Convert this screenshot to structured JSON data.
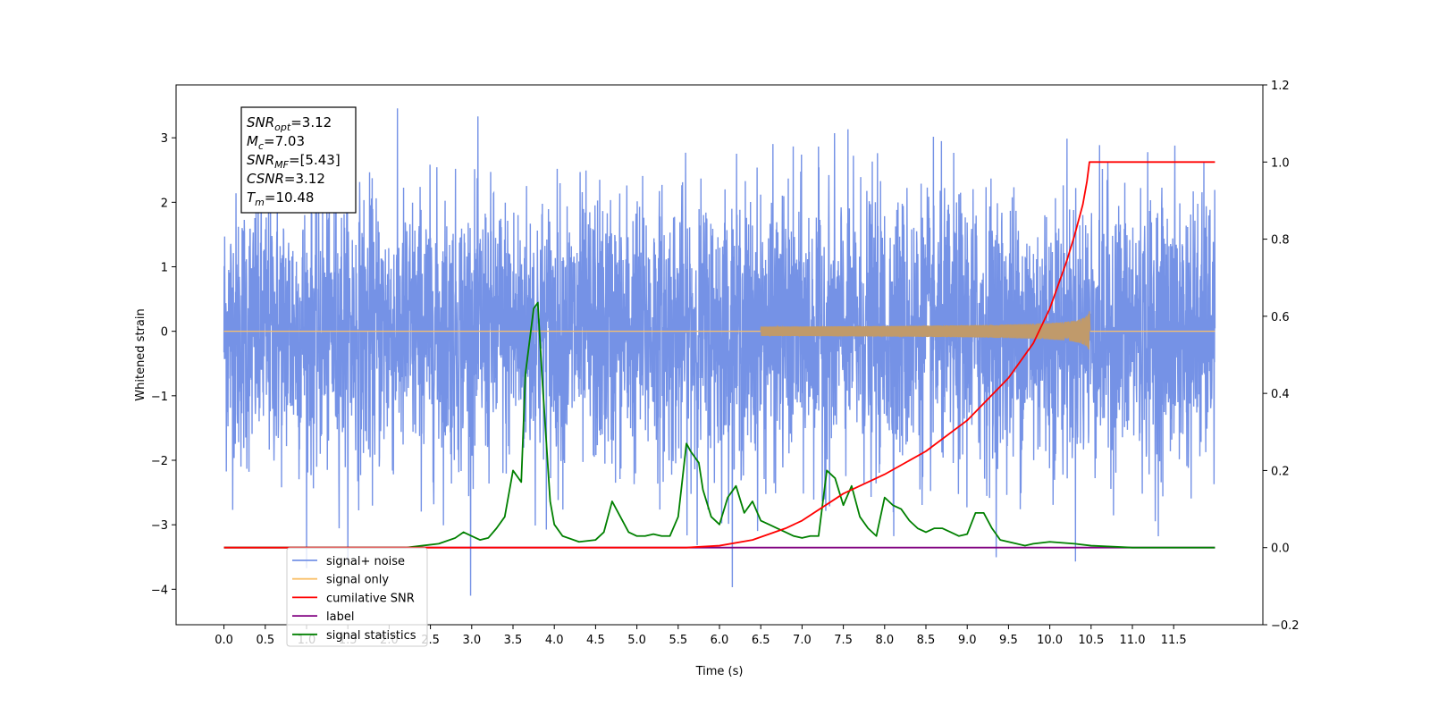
{
  "chart_data": {
    "type": "line",
    "xlabel": "Time (s)",
    "ylabel": "Whitened strain",
    "xlim": [
      -0.58,
      12.58
    ],
    "ylim": [
      -4.55,
      3.82
    ],
    "y2lim": [
      -0.2,
      1.2
    ],
    "x_ticks": [
      "0.0",
      "0.5",
      "1.0",
      "1.5",
      "2.0",
      "2.5",
      "3.0",
      "3.5",
      "4.0",
      "4.5",
      "5.0",
      "5.5",
      "6.0",
      "6.5",
      "7.0",
      "7.5",
      "8.0",
      "8.5",
      "9.0",
      "9.5",
      "10.0",
      "10.5",
      "11.0",
      "11.5"
    ],
    "y_ticks": [
      "−4",
      "−3",
      "−2",
      "−1",
      "0",
      "1",
      "2",
      "3"
    ],
    "y2_ticks": [
      "−0.2",
      "0.0",
      "0.2",
      "0.4",
      "0.6",
      "0.8",
      "1.0",
      "1.2"
    ],
    "legend_location": "lower-left",
    "annotation": {
      "lines": [
        {
          "label": "SNR",
          "sub": "opt",
          "value": "=3.12"
        },
        {
          "label": "M",
          "sub": "c",
          "value": "=7.03"
        },
        {
          "label": "SNR",
          "sub": "MF",
          "value": "=[5.43]"
        },
        {
          "label": "CSNR",
          "sub": "",
          "value": "=3.12"
        },
        {
          "label": "T",
          "sub": "m",
          "value": "=10.48"
        }
      ]
    },
    "series": [
      {
        "name": "signal+ noise",
        "axis": "left",
        "color": "#7592e6",
        "x_range": [
          0.0,
          12.0
        ],
        "y_typical_range": [
          -1.9,
          1.9
        ],
        "y_extremes": [
          -4.1,
          3.46
        ],
        "note_values": "dense whitened noise trace"
      },
      {
        "name": "signal only",
        "axis": "left",
        "color": "#f9c06a",
        "chirp_start": 6.5,
        "merger_time": 10.48,
        "peak_amplitude": 0.32
      },
      {
        "name": "cumilative SNR",
        "axis": "right",
        "color": "#ff0000",
        "x": [
          0.0,
          5.0,
          5.6,
          6.0,
          6.4,
          6.8,
          7.0,
          7.5,
          8.0,
          8.5,
          9.0,
          9.5,
          9.8,
          10.0,
          10.2,
          10.3,
          10.4,
          10.45,
          10.48,
          11.0,
          12.0
        ],
        "y": [
          0.0,
          0.0,
          0.0,
          0.005,
          0.02,
          0.05,
          0.07,
          0.14,
          0.19,
          0.25,
          0.33,
          0.44,
          0.53,
          0.62,
          0.74,
          0.81,
          0.89,
          0.95,
          1.0,
          1.0,
          1.0
        ]
      },
      {
        "name": "label",
        "axis": "right",
        "color": "#800080",
        "x": [
          0.0,
          12.0
        ],
        "y": [
          0.0,
          0.0
        ]
      },
      {
        "name": "signal statistics",
        "axis": "right",
        "color": "#008000",
        "x": [
          0.0,
          2.2,
          2.4,
          2.6,
          2.8,
          2.9,
          3.0,
          3.1,
          3.2,
          3.3,
          3.4,
          3.5,
          3.6,
          3.65,
          3.75,
          3.8,
          3.85,
          3.95,
          4.0,
          4.1,
          4.3,
          4.5,
          4.6,
          4.7,
          4.8,
          4.9,
          5.0,
          5.1,
          5.2,
          5.3,
          5.4,
          5.5,
          5.6,
          5.65,
          5.75,
          5.8,
          5.9,
          6.0,
          6.1,
          6.2,
          6.3,
          6.4,
          6.5,
          6.6,
          6.7,
          6.8,
          6.9,
          7.0,
          7.1,
          7.2,
          7.3,
          7.4,
          7.5,
          7.6,
          7.7,
          7.8,
          7.9,
          8.0,
          8.1,
          8.2,
          8.3,
          8.4,
          8.5,
          8.6,
          8.7,
          8.8,
          8.9,
          9.0,
          9.1,
          9.2,
          9.3,
          9.4,
          9.5,
          9.6,
          9.7,
          9.8,
          10.0,
          10.3,
          10.5,
          11.0,
          12.0
        ],
        "y": [
          0.0,
          0.0,
          0.005,
          0.01,
          0.025,
          0.04,
          0.03,
          0.02,
          0.025,
          0.05,
          0.08,
          0.2,
          0.17,
          0.45,
          0.62,
          0.635,
          0.45,
          0.12,
          0.06,
          0.03,
          0.015,
          0.02,
          0.04,
          0.12,
          0.08,
          0.04,
          0.03,
          0.03,
          0.035,
          0.03,
          0.03,
          0.08,
          0.27,
          0.25,
          0.22,
          0.15,
          0.08,
          0.06,
          0.13,
          0.16,
          0.09,
          0.12,
          0.07,
          0.06,
          0.05,
          0.04,
          0.03,
          0.025,
          0.03,
          0.03,
          0.2,
          0.18,
          0.11,
          0.16,
          0.08,
          0.05,
          0.03,
          0.13,
          0.11,
          0.1,
          0.07,
          0.05,
          0.04,
          0.05,
          0.05,
          0.04,
          0.03,
          0.035,
          0.09,
          0.09,
          0.05,
          0.02,
          0.015,
          0.01,
          0.005,
          0.01,
          0.015,
          0.01,
          0.005,
          0.0,
          0.0
        ]
      }
    ]
  }
}
